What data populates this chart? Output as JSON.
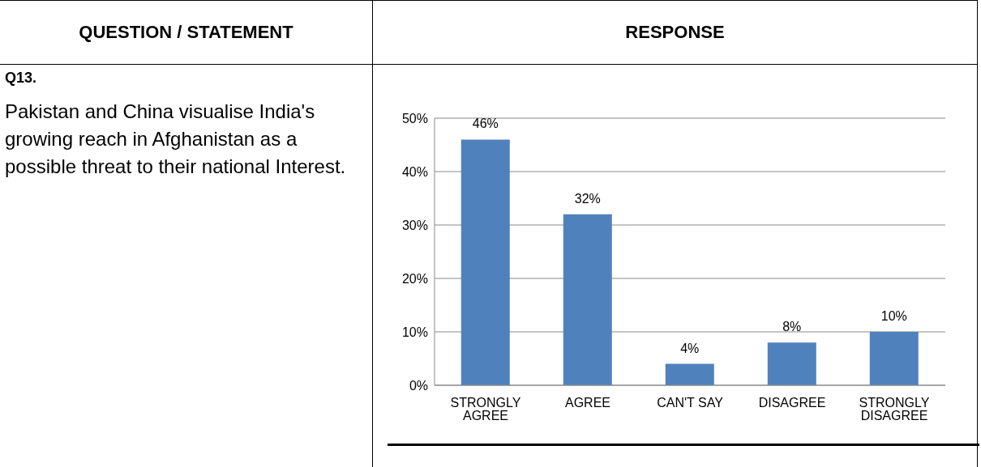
{
  "chart_data": {
    "type": "bar",
    "title": "Q13.",
    "subtitle": "Pakistan and China visualise India's growing reach in Afghanistan as a possible threat to their national Interest.",
    "annotations": [
      "QUESTION / STATEMENT",
      "RESPONSE"
    ],
    "categories": [
      "STRONGLY AGREE",
      "AGREE",
      "CAN'T SAY",
      "DISAGREE",
      "STRONGLY DISAGREE"
    ],
    "values": [
      46,
      32,
      4,
      8,
      10
    ],
    "value_labels": [
      "46%",
      "32%",
      "4%",
      "8%",
      "10%"
    ],
    "color": "#4f81bd",
    "ylim": [
      0,
      50
    ],
    "yticks": [
      {
        "value": 0,
        "label": "0%"
      },
      {
        "value": 10,
        "label": "10%"
      },
      {
        "value": 20,
        "label": "20%"
      },
      {
        "value": 30,
        "label": "30%"
      },
      {
        "value": 40,
        "label": "40%"
      },
      {
        "value": 50,
        "label": "50%"
      }
    ],
    "grid": "y"
  }
}
